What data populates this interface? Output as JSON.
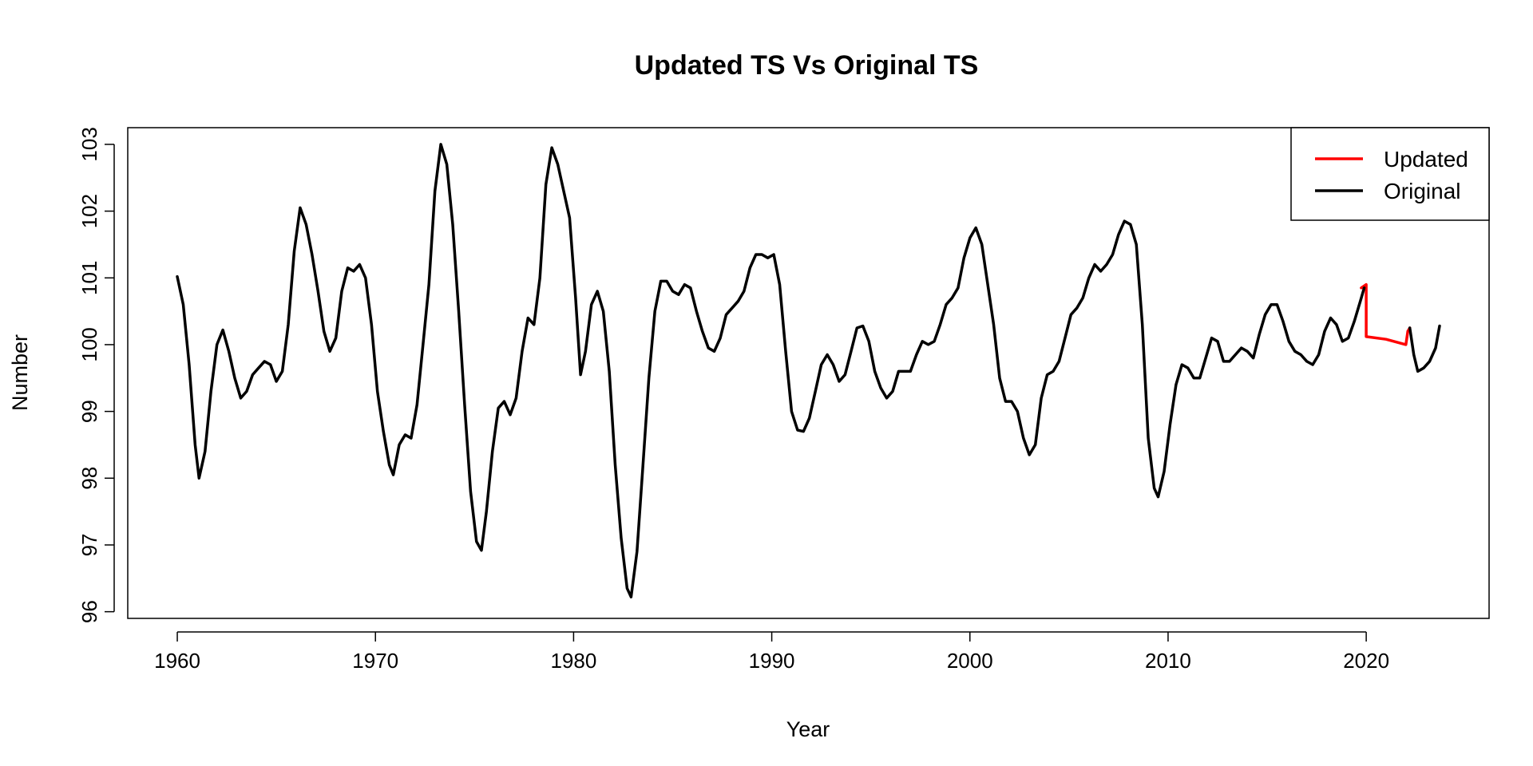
{
  "chart_data": {
    "type": "line",
    "title": "Updated TS Vs Original TS",
    "xlabel": "Year",
    "ylabel": "Number",
    "xlim": [
      1957.5,
      2026.2
    ],
    "ylim": [
      95.9,
      103.25
    ],
    "x_ticks": [
      1960,
      1970,
      1980,
      1990,
      2000,
      2010,
      2020
    ],
    "y_ticks": [
      96,
      97,
      98,
      99,
      100,
      101,
      102,
      103
    ],
    "grid": false,
    "legend": {
      "position": "top-right",
      "entries": [
        "Updated",
        "Original"
      ]
    },
    "series": [
      {
        "name": "Updated",
        "color": "#ff0000",
        "points": [
          [
            2019.75,
            100.85
          ],
          [
            2020.0,
            100.9
          ],
          [
            2020.0,
            100.12
          ],
          [
            2021.0,
            100.08
          ],
          [
            2022.0,
            100.0
          ],
          [
            2022.1,
            100.2
          ],
          [
            2022.2,
            100.25
          ]
        ]
      },
      {
        "name": "Original",
        "color": "#000000",
        "segments": [
          [
            [
              1960.0,
              101.02
            ],
            [
              1960.3,
              100.6
            ],
            [
              1960.6,
              99.7
            ],
            [
              1960.9,
              98.5
            ],
            [
              1961.1,
              98.0
            ],
            [
              1961.4,
              98.4
            ],
            [
              1961.7,
              99.3
            ],
            [
              1962.0,
              100.0
            ],
            [
              1962.3,
              100.22
            ],
            [
              1962.6,
              99.9
            ],
            [
              1962.9,
              99.5
            ],
            [
              1963.2,
              99.2
            ],
            [
              1963.5,
              99.3
            ],
            [
              1963.8,
              99.55
            ],
            [
              1964.1,
              99.65
            ],
            [
              1964.4,
              99.75
            ],
            [
              1964.7,
              99.7
            ],
            [
              1965.0,
              99.45
            ],
            [
              1965.3,
              99.6
            ],
            [
              1965.6,
              100.3
            ],
            [
              1965.9,
              101.4
            ],
            [
              1966.2,
              102.05
            ],
            [
              1966.5,
              101.8
            ],
            [
              1966.8,
              101.35
            ],
            [
              1967.1,
              100.8
            ],
            [
              1967.4,
              100.2
            ],
            [
              1967.7,
              99.9
            ],
            [
              1968.0,
              100.1
            ],
            [
              1968.3,
              100.8
            ],
            [
              1968.6,
              101.15
            ],
            [
              1968.9,
              101.1
            ],
            [
              1969.2,
              101.2
            ],
            [
              1969.5,
              101.0
            ],
            [
              1969.8,
              100.3
            ],
            [
              1970.1,
              99.3
            ],
            [
              1970.4,
              98.7
            ],
            [
              1970.7,
              98.2
            ],
            [
              1970.9,
              98.05
            ],
            [
              1971.2,
              98.5
            ],
            [
              1971.5,
              98.65
            ],
            [
              1971.8,
              98.6
            ],
            [
              1972.1,
              99.1
            ],
            [
              1972.4,
              100.0
            ],
            [
              1972.7,
              100.9
            ],
            [
              1973.0,
              102.3
            ],
            [
              1973.3,
              103.0
            ],
            [
              1973.6,
              102.7
            ],
            [
              1973.9,
              101.8
            ],
            [
              1974.2,
              100.5
            ],
            [
              1974.5,
              99.1
            ],
            [
              1974.8,
              97.8
            ],
            [
              1975.1,
              97.05
            ],
            [
              1975.35,
              96.92
            ],
            [
              1975.6,
              97.5
            ],
            [
              1975.9,
              98.4
            ],
            [
              1976.2,
              99.05
            ],
            [
              1976.5,
              99.15
            ],
            [
              1976.8,
              98.95
            ],
            [
              1977.1,
              99.2
            ],
            [
              1977.4,
              99.9
            ],
            [
              1977.7,
              100.4
            ],
            [
              1978.0,
              100.3
            ],
            [
              1978.3,
              101.0
            ],
            [
              1978.6,
              102.4
            ],
            [
              1978.9,
              102.95
            ],
            [
              1979.2,
              102.7
            ],
            [
              1979.5,
              102.3
            ],
            [
              1979.8,
              101.9
            ],
            [
              1980.1,
              100.7
            ],
            [
              1980.35,
              99.55
            ],
            [
              1980.6,
              99.9
            ],
            [
              1980.9,
              100.6
            ],
            [
              1981.2,
              100.8
            ],
            [
              1981.5,
              100.5
            ],
            [
              1981.8,
              99.6
            ],
            [
              1982.1,
              98.2
            ],
            [
              1982.4,
              97.1
            ],
            [
              1982.7,
              96.35
            ],
            [
              1982.9,
              96.22
            ],
            [
              1983.2,
              96.9
            ],
            [
              1983.5,
              98.2
            ],
            [
              1983.8,
              99.5
            ],
            [
              1984.1,
              100.5
            ],
            [
              1984.4,
              100.95
            ],
            [
              1984.7,
              100.95
            ],
            [
              1985.0,
              100.8
            ],
            [
              1985.3,
              100.75
            ],
            [
              1985.6,
              100.9
            ],
            [
              1985.9,
              100.85
            ],
            [
              1986.2,
              100.5
            ],
            [
              1986.5,
              100.2
            ],
            [
              1986.8,
              99.95
            ],
            [
              1987.1,
              99.9
            ],
            [
              1987.4,
              100.1
            ],
            [
              1987.7,
              100.45
            ],
            [
              1988.0,
              100.55
            ],
            [
              1988.3,
              100.65
            ],
            [
              1988.6,
              100.8
            ],
            [
              1988.9,
              101.15
            ],
            [
              1989.2,
              101.35
            ],
            [
              1989.5,
              101.35
            ],
            [
              1989.8,
              101.3
            ],
            [
              1990.1,
              101.35
            ],
            [
              1990.4,
              100.9
            ],
            [
              1990.7,
              99.9
            ],
            [
              1991.0,
              99.0
            ],
            [
              1991.3,
              98.72
            ],
            [
              1991.6,
              98.7
            ],
            [
              1991.9,
              98.9
            ],
            [
              1992.2,
              99.3
            ],
            [
              1992.5,
              99.7
            ],
            [
              1992.8,
              99.85
            ],
            [
              1993.1,
              99.7
            ],
            [
              1993.4,
              99.45
            ],
            [
              1993.7,
              99.55
            ],
            [
              1994.0,
              99.9
            ],
            [
              1994.3,
              100.25
            ],
            [
              1994.6,
              100.28
            ],
            [
              1994.9,
              100.05
            ],
            [
              1995.2,
              99.6
            ],
            [
              1995.5,
              99.35
            ],
            [
              1995.8,
              99.2
            ],
            [
              1996.1,
              99.3
            ],
            [
              1996.4,
              99.6
            ],
            [
              1996.7,
              99.6
            ],
            [
              1997.0,
              99.6
            ],
            [
              1997.3,
              99.85
            ],
            [
              1997.6,
              100.05
            ],
            [
              1997.9,
              100.0
            ],
            [
              1998.2,
              100.05
            ],
            [
              1998.5,
              100.3
            ],
            [
              1998.8,
              100.6
            ],
            [
              1999.1,
              100.7
            ],
            [
              1999.4,
              100.85
            ],
            [
              1999.7,
              101.3
            ],
            [
              2000.0,
              101.6
            ],
            [
              2000.3,
              101.75
            ],
            [
              2000.6,
              101.5
            ],
            [
              2000.9,
              100.9
            ],
            [
              2001.2,
              100.3
            ],
            [
              2001.5,
              99.5
            ],
            [
              2001.8,
              99.15
            ],
            [
              2002.1,
              99.15
            ],
            [
              2002.4,
              99.0
            ],
            [
              2002.7,
              98.6
            ],
            [
              2003.0,
              98.35
            ],
            [
              2003.3,
              98.5
            ],
            [
              2003.6,
              99.2
            ],
            [
              2003.9,
              99.55
            ],
            [
              2004.2,
              99.6
            ],
            [
              2004.5,
              99.75
            ],
            [
              2004.8,
              100.1
            ],
            [
              2005.1,
              100.45
            ],
            [
              2005.4,
              100.55
            ],
            [
              2005.7,
              100.7
            ],
            [
              2006.0,
              101.0
            ],
            [
              2006.3,
              101.2
            ],
            [
              2006.6,
              101.1
            ],
            [
              2006.9,
              101.2
            ],
            [
              2007.2,
              101.35
            ],
            [
              2007.5,
              101.65
            ],
            [
              2007.8,
              101.85
            ],
            [
              2008.1,
              101.8
            ],
            [
              2008.4,
              101.5
            ],
            [
              2008.7,
              100.3
            ],
            [
              2009.0,
              98.6
            ],
            [
              2009.3,
              97.85
            ],
            [
              2009.5,
              97.72
            ],
            [
              2009.8,
              98.1
            ],
            [
              2010.1,
              98.8
            ],
            [
              2010.4,
              99.4
            ],
            [
              2010.7,
              99.7
            ],
            [
              2011.0,
              99.65
            ],
            [
              2011.3,
              99.5
            ],
            [
              2011.6,
              99.5
            ],
            [
              2011.9,
              99.8
            ],
            [
              2012.2,
              100.1
            ],
            [
              2012.5,
              100.05
            ],
            [
              2012.8,
              99.75
            ],
            [
              2013.1,
              99.75
            ],
            [
              2013.4,
              99.85
            ],
            [
              2013.7,
              99.95
            ],
            [
              2014.0,
              99.9
            ],
            [
              2014.3,
              99.8
            ],
            [
              2014.6,
              100.15
            ],
            [
              2014.9,
              100.45
            ],
            [
              2015.2,
              100.6
            ],
            [
              2015.5,
              100.6
            ],
            [
              2015.8,
              100.35
            ],
            [
              2016.1,
              100.05
            ],
            [
              2016.4,
              99.9
            ],
            [
              2016.7,
              99.85
            ],
            [
              2017.0,
              99.75
            ],
            [
              2017.3,
              99.7
            ],
            [
              2017.6,
              99.85
            ],
            [
              2017.9,
              100.2
            ],
            [
              2018.2,
              100.4
            ],
            [
              2018.5,
              100.3
            ],
            [
              2018.8,
              100.05
            ],
            [
              2019.1,
              100.1
            ],
            [
              2019.4,
              100.35
            ],
            [
              2019.7,
              100.65
            ],
            [
              2019.9,
              100.85
            ]
          ],
          [
            [
              2022.2,
              100.25
            ],
            [
              2022.4,
              99.85
            ],
            [
              2022.6,
              99.6
            ],
            [
              2022.9,
              99.65
            ],
            [
              2023.2,
              99.75
            ],
            [
              2023.5,
              99.95
            ],
            [
              2023.7,
              100.28
            ]
          ]
        ]
      }
    ]
  }
}
